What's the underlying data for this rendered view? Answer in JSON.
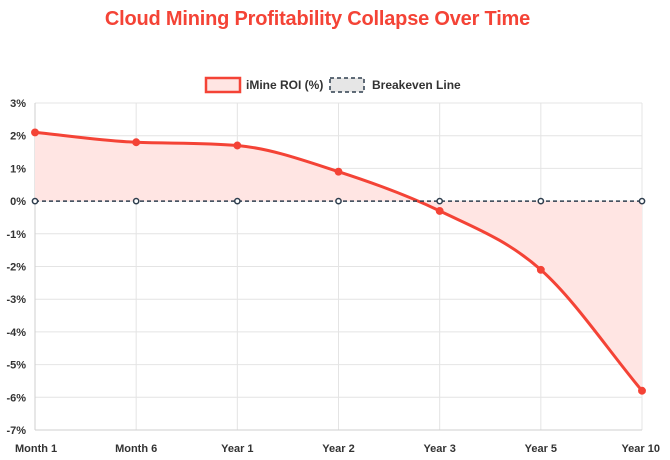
{
  "chart_data": {
    "type": "line",
    "title": "Cloud Mining Profitability Collapse Over Time",
    "categories": [
      "Month 1",
      "Month 6",
      "Year 1",
      "Year 2",
      "Year 3",
      "Year 5",
      "Year 10"
    ],
    "series": [
      {
        "name": "iMine ROI (%)",
        "values": [
          2.1,
          1.8,
          1.7,
          0.9,
          -0.3,
          -2.1,
          -5.8
        ],
        "color": "#f44336",
        "fill": "#ffe5e3",
        "fill_to_zero": true,
        "smooth": true
      },
      {
        "name": "Breakeven Line",
        "values": [
          0,
          0,
          0,
          0,
          0,
          0,
          0
        ],
        "color": "#2f3e4e",
        "dashed": true
      }
    ],
    "ylim": [
      -7,
      3
    ],
    "ytick_step": 1,
    "ytick_suffix": "%",
    "grid": true,
    "legend_position": "top",
    "title_color": "#f44336"
  }
}
